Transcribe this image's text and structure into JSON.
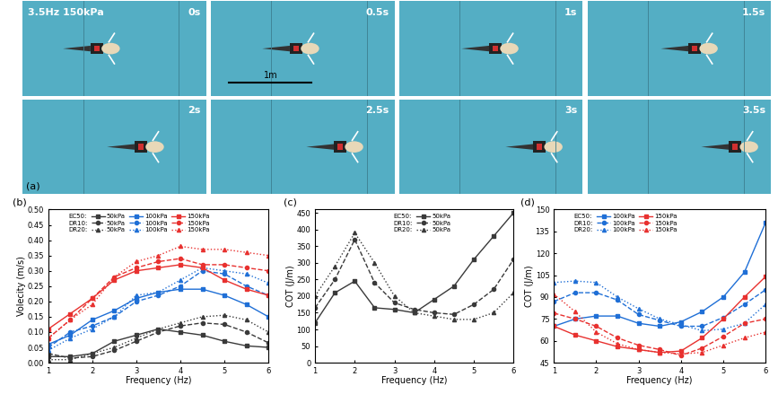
{
  "panel_a": {
    "label": "(a)",
    "condition": "3.5Hz 150kPa",
    "frames": [
      "0s",
      "0.5s",
      "1s",
      "1.5s",
      "2s",
      "2.5s",
      "3s",
      "3.5s"
    ],
    "scale_bar": "1m"
  },
  "chart_data": [
    {
      "type": "line",
      "panel": "(b)",
      "x_label": "Frequency (Hz)",
      "y_label": "Volecity (m/s)",
      "x": [
        1,
        1.5,
        2,
        2.5,
        3,
        3.5,
        4,
        4.5,
        5,
        5.5,
        6
      ],
      "xlim": [
        1,
        6
      ],
      "xticks": [
        1,
        2,
        3,
        4,
        5,
        6
      ],
      "ylim": [
        0,
        0.5
      ],
      "yticks": [
        {
          "value": 0,
          "label": "0.00"
        },
        {
          "value": 0.05,
          "label": "0.05"
        },
        {
          "value": 0.1,
          "label": "0.10"
        },
        {
          "value": 0.15,
          "label": "0.15"
        },
        {
          "value": 0.2,
          "label": "0.20"
        },
        {
          "value": 0.25,
          "label": "0.25"
        },
        {
          "value": 0.3,
          "label": "0.30"
        },
        {
          "value": 0.35,
          "label": "0.35"
        },
        {
          "value": 0.4,
          "label": "0.40"
        },
        {
          "value": 0.45,
          "label": "0.45"
        },
        {
          "value": 0.5,
          "label": "0.50"
        }
      ],
      "legend": "upper left",
      "series": [
        {
          "group": "EC50:",
          "name": "50kPa",
          "color": "#3a3a3a",
          "marker": "square",
          "line_style": "solid",
          "values": [
            0.02,
            0.02,
            0.03,
            0.07,
            0.09,
            0.11,
            0.1,
            0.09,
            0.07,
            0.055,
            0.05
          ]
        },
        {
          "group": "DR10:",
          "name": "50kPa",
          "color": "#3a3a3a",
          "marker": "circle",
          "line_style": "dashed",
          "values": [
            0.03,
            0.015,
            0.02,
            0.04,
            0.07,
            0.1,
            0.12,
            0.13,
            0.125,
            0.1,
            0.065
          ]
        },
        {
          "group": "DR20:",
          "name": "50kPa",
          "color": "#3a3a3a",
          "marker": "triangle",
          "line_style": "dotted",
          "values": [
            0.01,
            0.01,
            0.03,
            0.05,
            0.08,
            0.11,
            0.13,
            0.15,
            0.155,
            0.14,
            0.1
          ]
        },
        {
          "group": "EC50:",
          "name": "100kPa",
          "color": "#1f6fd6",
          "marker": "square",
          "line_style": "solid",
          "values": [
            0.06,
            0.09,
            0.14,
            0.17,
            0.21,
            0.23,
            0.24,
            0.24,
            0.22,
            0.19,
            0.15
          ]
        },
        {
          "group": "DR10:",
          "name": "100kPa",
          "color": "#1f6fd6",
          "marker": "circle",
          "line_style": "dashed",
          "values": [
            0.05,
            0.1,
            0.12,
            0.15,
            0.2,
            0.22,
            0.25,
            0.3,
            0.29,
            0.25,
            0.22
          ]
        },
        {
          "group": "DR20:",
          "name": "100kPa",
          "color": "#1f6fd6",
          "marker": "triangle",
          "line_style": "dotted",
          "values": [
            0.04,
            0.08,
            0.11,
            0.15,
            0.22,
            0.23,
            0.27,
            0.31,
            0.3,
            0.29,
            0.26
          ]
        },
        {
          "group": "EC50:",
          "name": "150kPa",
          "color": "#e8312f",
          "marker": "square",
          "line_style": "solid",
          "values": [
            0.11,
            0.16,
            0.21,
            0.27,
            0.3,
            0.31,
            0.32,
            0.31,
            0.27,
            0.24,
            0.22
          ]
        },
        {
          "group": "DR10:",
          "name": "150kPa",
          "color": "#e8312f",
          "marker": "circle",
          "line_style": "dashed",
          "values": [
            0.08,
            0.14,
            0.21,
            0.28,
            0.31,
            0.33,
            0.34,
            0.32,
            0.32,
            0.31,
            0.3
          ]
        },
        {
          "group": "DR20:",
          "name": "150kPa",
          "color": "#e8312f",
          "marker": "triangle",
          "line_style": "dotted",
          "values": [
            0.08,
            0.14,
            0.19,
            0.28,
            0.33,
            0.35,
            0.38,
            0.37,
            0.37,
            0.36,
            0.35
          ]
        }
      ]
    },
    {
      "type": "line",
      "panel": "(c)",
      "x_label": "Frequency (Hz)",
      "y_label": "COT (J/m)",
      "x": [
        1,
        1.5,
        2,
        2.5,
        3,
        3.5,
        4,
        4.5,
        5,
        5.5,
        6
      ],
      "xlim": [
        1,
        6
      ],
      "xticks": [
        1,
        2,
        3,
        4,
        5,
        6
      ],
      "ylim": [
        0,
        460
      ],
      "yticks": [
        0,
        50,
        100,
        150,
        200,
        250,
        300,
        350,
        400,
        450
      ],
      "legend": "upper center",
      "series": [
        {
          "group": "EC50:",
          "name": "50kPa",
          "color": "#3a3a3a",
          "marker": "square",
          "line_style": "solid",
          "values": [
            120,
            210,
            245,
            165,
            160,
            150,
            190,
            230,
            310,
            380,
            450
          ]
        },
        {
          "group": "DR10:",
          "name": "50kPa",
          "color": "#3a3a3a",
          "marker": "circle",
          "line_style": "dashed",
          "values": [
            165,
            250,
            370,
            240,
            180,
            160,
            150,
            145,
            175,
            220,
            310
          ]
        },
        {
          "group": "DR20:",
          "name": "50kPa",
          "color": "#3a3a3a",
          "marker": "triangle",
          "line_style": "dotted",
          "values": [
            200,
            290,
            390,
            300,
            200,
            150,
            140,
            130,
            130,
            150,
            210
          ]
        }
      ]
    },
    {
      "type": "line",
      "panel": "(d)",
      "x_label": "Frequency (Hz)",
      "y_label": "COT (J/m)",
      "x": [
        1,
        1.5,
        2,
        2.5,
        3,
        3.5,
        4,
        4.5,
        5,
        5.5,
        6
      ],
      "xlim": [
        1,
        6
      ],
      "xticks": [
        1,
        2,
        3,
        4,
        5,
        6
      ],
      "ylim": [
        45,
        150
      ],
      "yticks": [
        45,
        60,
        75,
        90,
        105,
        120,
        135,
        150
      ],
      "legend": "upper left",
      "series": [
        {
          "group": "EC50:",
          "name": "100kPa",
          "color": "#1f6fd6",
          "marker": "square",
          "line_style": "solid",
          "values": [
            70,
            75,
            77,
            77,
            72,
            70,
            73,
            80,
            90,
            107,
            141
          ]
        },
        {
          "group": "DR10:",
          "name": "100kPa",
          "color": "#1f6fd6",
          "marker": "circle",
          "line_style": "dashed",
          "values": [
            87,
            93,
            93,
            88,
            78,
            74,
            70,
            70,
            76,
            85,
            95
          ]
        },
        {
          "group": "DR20:",
          "name": "100kPa",
          "color": "#1f6fd6",
          "marker": "triangle",
          "line_style": "dotted",
          "values": [
            100,
            101,
            100,
            90,
            82,
            75,
            71,
            67,
            68,
            72,
            85
          ]
        },
        {
          "group": "EC50:",
          "name": "150kPa",
          "color": "#e8312f",
          "marker": "square",
          "line_style": "solid",
          "values": [
            70,
            64,
            60,
            56,
            54,
            52,
            53,
            62,
            75,
            90,
            104
          ]
        },
        {
          "group": "DR10:",
          "name": "150kPa",
          "color": "#e8312f",
          "marker": "circle",
          "line_style": "dashed",
          "values": [
            79,
            75,
            70,
            62,
            57,
            54,
            50,
            55,
            63,
            72,
            75
          ]
        },
        {
          "group": "DR20:",
          "name": "150kPa",
          "color": "#e8312f",
          "marker": "triangle",
          "line_style": "dotted",
          "values": [
            92,
            80,
            66,
            58,
            54,
            52,
            51,
            52,
            57,
            62,
            66
          ]
        }
      ]
    }
  ]
}
